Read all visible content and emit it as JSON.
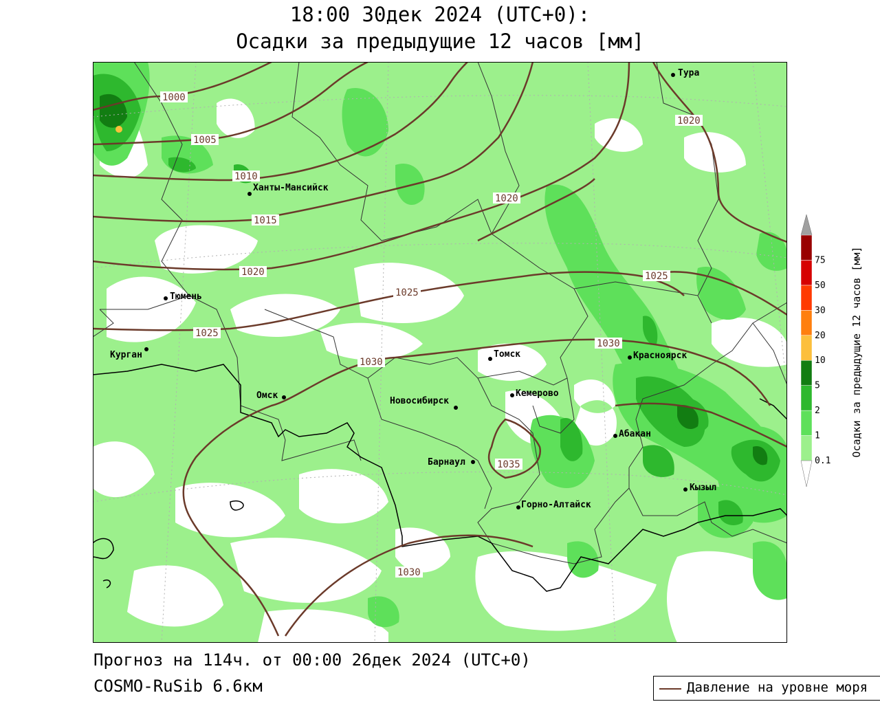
{
  "header": {
    "title_line1": "18:00 30дек 2024 (UTC+0):",
    "title_line2": "Осадки за предыдущие 12 часов [мм]"
  },
  "footer": {
    "forecast": "Прогноз на 114ч. от 00:00 26дек 2024 (UTC+0)",
    "model": "COSMO-RuSib 6.6км"
  },
  "legend": {
    "pressure_label": "Давление на уровне моря",
    "pressure_color": "#6b3a2a"
  },
  "colorbar": {
    "label": "Осадки за предыдущие 12 часов [мм]",
    "ticks": [
      "0.1",
      "1",
      "2",
      "5",
      "10",
      "20",
      "30",
      "50",
      "75"
    ],
    "colors": [
      "#9cf08c",
      "#5ee05a",
      "#2eb82e",
      "#127d12",
      "#fcbf3c",
      "#ff7f0e",
      "#ff3a00",
      "#d60000",
      "#990000"
    ],
    "over_color": "#a0a0a0",
    "under_color": "#ffffff"
  },
  "map": {
    "cities": [
      {
        "name": "Тура"
      },
      {
        "name": "Ханты-Мансийск"
      },
      {
        "name": "Тюмень"
      },
      {
        "name": "Курган"
      },
      {
        "name": "Омск"
      },
      {
        "name": "Томск"
      },
      {
        "name": "Красноярск"
      },
      {
        "name": "Новосибирск"
      },
      {
        "name": "Кемерово"
      },
      {
        "name": "Абакан"
      },
      {
        "name": "Барнаул"
      },
      {
        "name": "Кызыл"
      },
      {
        "name": "Горно-Алтайск"
      }
    ],
    "isobars": [
      "1000",
      "1005",
      "1010",
      "1015",
      "1020",
      "1020",
      "1020",
      "1025",
      "1025",
      "1025",
      "1030",
      "1030",
      "1030",
      "1035"
    ]
  }
}
